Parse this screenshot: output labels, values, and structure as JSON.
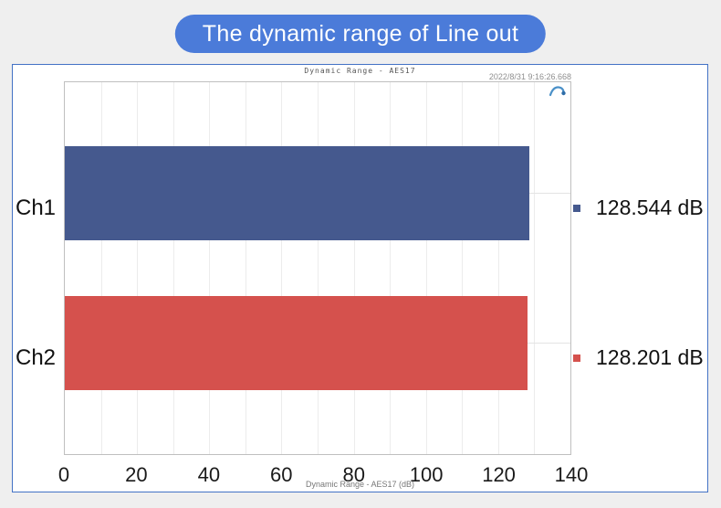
{
  "banner": {
    "title": "The dynamic range of Line out",
    "bg_color": "#4b7bd9"
  },
  "panel": {
    "title": "Dynamic Range - AES17",
    "timestamp": "2022/8/31 9:16:26.668",
    "footer": "Dynamic Range - AES17 (dB)",
    "logo": "audio-precision-logo",
    "logo_color": "#4a90c8"
  },
  "chart_data": {
    "type": "bar",
    "orientation": "horizontal",
    "title": "Dynamic Range - AES17",
    "categories": [
      "Ch1",
      "Ch2"
    ],
    "values": [
      128.544,
      128.201
    ],
    "value_labels": [
      "128.544 dB",
      "128.201 dB"
    ],
    "unit": "dB",
    "bar_colors": [
      "#45598e",
      "#d5514d"
    ],
    "xlim": [
      0,
      140
    ],
    "xticks": [
      0,
      20,
      40,
      60,
      80,
      100,
      120,
      140
    ],
    "minor_grid_step": 10,
    "xlabel": "Dynamic Range - AES17 (dB)",
    "grid": true,
    "value_label_position": "right"
  }
}
